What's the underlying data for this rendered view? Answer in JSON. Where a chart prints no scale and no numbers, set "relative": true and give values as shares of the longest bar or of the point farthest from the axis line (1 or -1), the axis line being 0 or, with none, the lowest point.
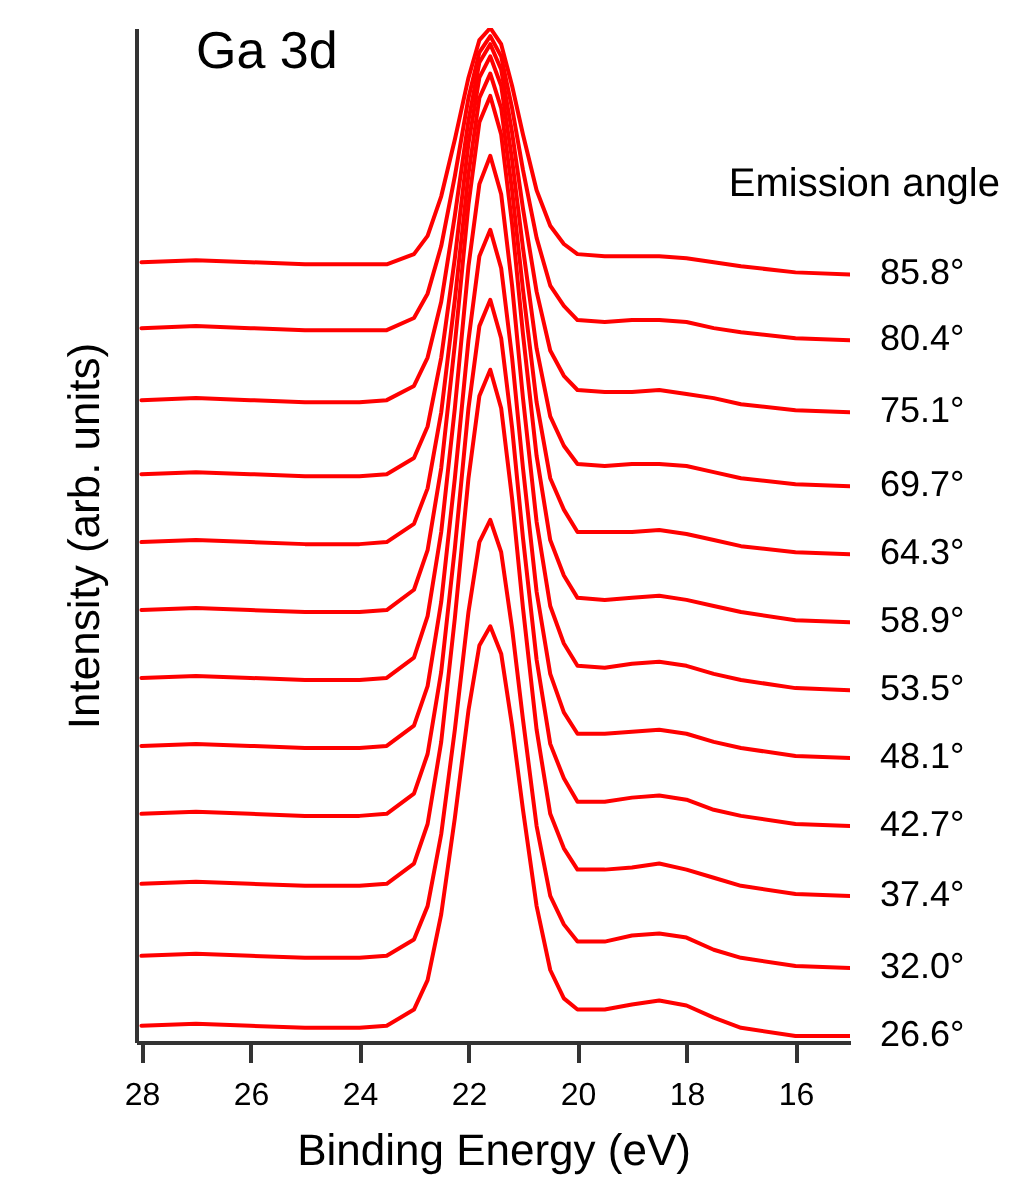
{
  "chart_data": {
    "type": "line",
    "title": "Ga 3d",
    "xlabel": "Binding Energy (eV)",
    "ylabel": "Intensity (arb. units)",
    "legend_title": "Emission angle",
    "relative": true,
    "xlim": [
      28.1,
      15
    ],
    "xticks": [
      28,
      26,
      24,
      22,
      20,
      18,
      16
    ],
    "grid": false,
    "marker": "none",
    "line_style": "solid",
    "x": [
      28,
      27,
      26,
      25,
      24,
      23.5,
      23,
      22.75,
      22.5,
      22.25,
      22,
      21.8,
      21.6,
      21.4,
      21.2,
      21,
      20.75,
      20.5,
      20.25,
      20,
      19.5,
      19,
      18.5,
      18,
      17.5,
      17,
      16,
      15
    ],
    "series": [
      {
        "name": "85.8°",
        "color": "#ff0000",
        "values": [
          0.769,
          0.771,
          0.769,
          0.767,
          0.767,
          0.767,
          0.777,
          0.795,
          0.834,
          0.89,
          0.951,
          0.988,
          1,
          0.984,
          0.943,
          0.895,
          0.84,
          0.805,
          0.787,
          0.777,
          0.775,
          0.775,
          0.775,
          0.773,
          0.769,
          0.765,
          0.759,
          0.757
        ]
      },
      {
        "name": "80.4°",
        "color": "#ff0000",
        "values": [
          0.704,
          0.706,
          0.704,
          0.702,
          0.702,
          0.702,
          0.714,
          0.738,
          0.785,
          0.854,
          0.931,
          0.976,
          0.992,
          0.972,
          0.921,
          0.86,
          0.793,
          0.746,
          0.726,
          0.712,
          0.71,
          0.712,
          0.712,
          0.71,
          0.704,
          0.7,
          0.694,
          0.692
        ]
      },
      {
        "name": "75.1°",
        "color": "#ff0000",
        "values": [
          0.633,
          0.635,
          0.633,
          0.631,
          0.631,
          0.633,
          0.647,
          0.675,
          0.73,
          0.815,
          0.909,
          0.966,
          0.984,
          0.959,
          0.897,
          0.822,
          0.74,
          0.682,
          0.657,
          0.643,
          0.641,
          0.641,
          0.643,
          0.639,
          0.635,
          0.629,
          0.623,
          0.621
        ]
      },
      {
        "name": "69.7°",
        "color": "#ff0000",
        "values": [
          0.56,
          0.562,
          0.56,
          0.558,
          0.558,
          0.56,
          0.576,
          0.607,
          0.675,
          0.773,
          0.886,
          0.951,
          0.972,
          0.943,
          0.87,
          0.783,
          0.684,
          0.617,
          0.588,
          0.57,
          0.568,
          0.57,
          0.57,
          0.568,
          0.562,
          0.556,
          0.55,
          0.548
        ]
      },
      {
        "name": "64.3°",
        "color": "#ff0000",
        "values": [
          0.493,
          0.495,
          0.493,
          0.491,
          0.491,
          0.493,
          0.511,
          0.546,
          0.621,
          0.732,
          0.856,
          0.931,
          0.955,
          0.921,
          0.84,
          0.742,
          0.631,
          0.556,
          0.525,
          0.503,
          0.503,
          0.503,
          0.505,
          0.501,
          0.495,
          0.489,
          0.483,
          0.481
        ]
      },
      {
        "name": "58.9°",
        "color": "#ff0000",
        "values": [
          0.426,
          0.428,
          0.426,
          0.424,
          0.424,
          0.426,
          0.446,
          0.485,
          0.566,
          0.688,
          0.826,
          0.907,
          0.933,
          0.895,
          0.807,
          0.698,
          0.578,
          0.495,
          0.46,
          0.438,
          0.436,
          0.438,
          0.44,
          0.436,
          0.43,
          0.424,
          0.416,
          0.414
        ]
      },
      {
        "name": "53.5°",
        "color": "#ff0000",
        "values": [
          0.359,
          0.361,
          0.359,
          0.357,
          0.357,
          0.359,
          0.379,
          0.42,
          0.503,
          0.625,
          0.765,
          0.846,
          0.874,
          0.836,
          0.746,
          0.635,
          0.513,
          0.43,
          0.393,
          0.371,
          0.369,
          0.373,
          0.375,
          0.371,
          0.363,
          0.357,
          0.349,
          0.347
        ]
      },
      {
        "name": "48.1°",
        "color": "#ff0000",
        "values": [
          0.292,
          0.294,
          0.292,
          0.29,
          0.29,
          0.292,
          0.312,
          0.351,
          0.434,
          0.556,
          0.692,
          0.775,
          0.801,
          0.763,
          0.675,
          0.566,
          0.444,
          0.363,
          0.325,
          0.304,
          0.304,
          0.306,
          0.308,
          0.304,
          0.296,
          0.29,
          0.282,
          0.28
        ]
      },
      {
        "name": "42.7°",
        "color": "#ff0000",
        "values": [
          0.225,
          0.227,
          0.225,
          0.223,
          0.223,
          0.225,
          0.245,
          0.284,
          0.365,
          0.487,
          0.625,
          0.706,
          0.732,
          0.694,
          0.606,
          0.497,
          0.377,
          0.294,
          0.26,
          0.237,
          0.237,
          0.241,
          0.243,
          0.239,
          0.229,
          0.223,
          0.215,
          0.213
        ]
      },
      {
        "name": "37.4°",
        "color": "#ff0000",
        "values": [
          0.156,
          0.158,
          0.156,
          0.154,
          0.154,
          0.156,
          0.176,
          0.215,
          0.296,
          0.418,
          0.556,
          0.637,
          0.663,
          0.625,
          0.536,
          0.428,
          0.308,
          0.225,
          0.191,
          0.17,
          0.17,
          0.172,
          0.176,
          0.17,
          0.162,
          0.154,
          0.146,
          0.144
        ]
      },
      {
        "name": "32.0°",
        "color": "#ff0000",
        "values": [
          0.085,
          0.087,
          0.085,
          0.083,
          0.083,
          0.085,
          0.101,
          0.134,
          0.205,
          0.308,
          0.424,
          0.493,
          0.515,
          0.483,
          0.408,
          0.318,
          0.213,
          0.144,
          0.116,
          0.099,
          0.099,
          0.105,
          0.107,
          0.103,
          0.091,
          0.083,
          0.075,
          0.073
        ]
      },
      {
        "name": "26.6°",
        "color": "#ff0000",
        "values": [
          0.016,
          0.018,
          0.016,
          0.014,
          0.014,
          0.016,
          0.032,
          0.061,
          0.126,
          0.221,
          0.327,
          0.391,
          0.41,
          0.383,
          0.312,
          0.229,
          0.134,
          0.071,
          0.043,
          0.032,
          0.032,
          0.037,
          0.041,
          0.036,
          0.024,
          0.014,
          0.006,
          0.006
        ]
      }
    ]
  }
}
